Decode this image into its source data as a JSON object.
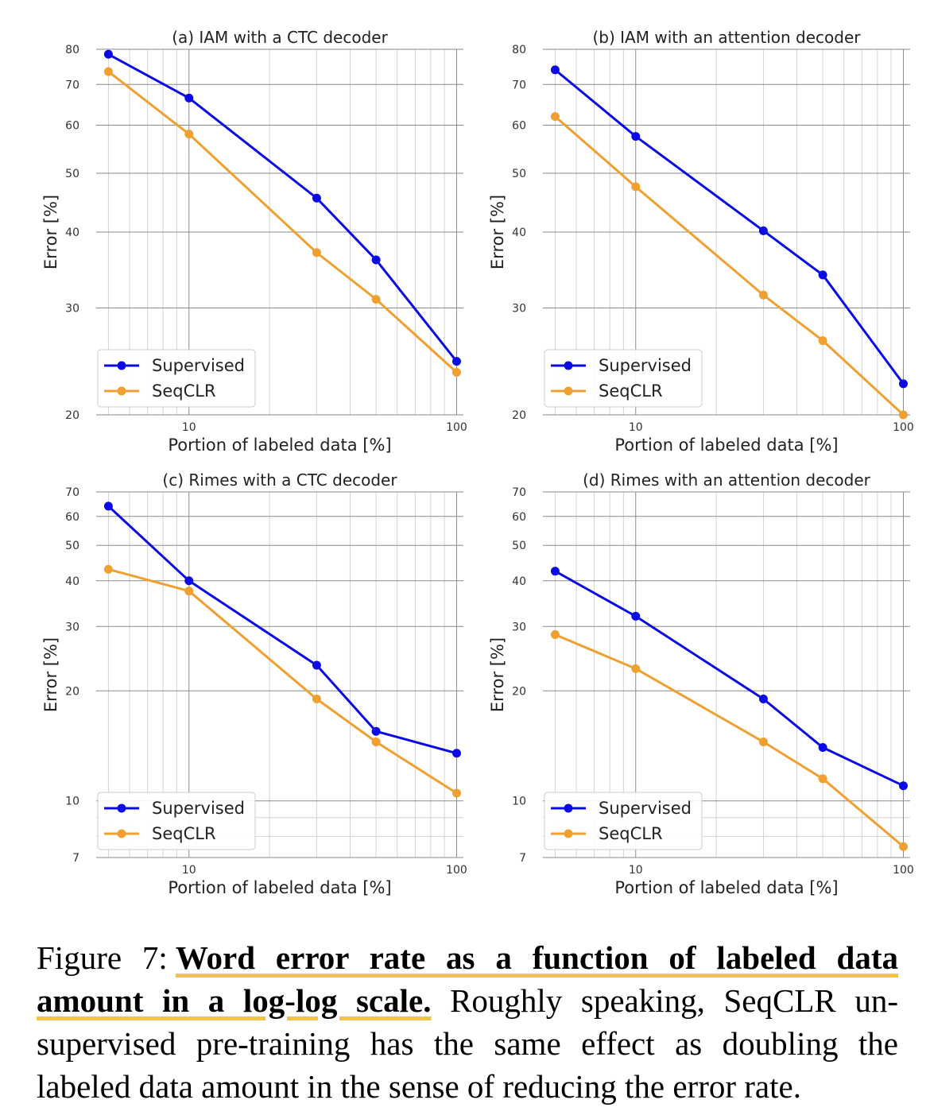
{
  "colors": {
    "supervised": "#0a0ae6",
    "seqclr": "#f0a030",
    "grid_major": "#8a8a8a",
    "grid_minor": "#d2d2d2"
  },
  "chart_data": [
    {
      "type": "line",
      "title": "(a) IAM with a CTC decoder",
      "xlabel": "Portion of labeled data [%]",
      "ylabel": "Error [%]",
      "xscale": "log",
      "yscale": "log",
      "xlim": [
        4.5,
        106
      ],
      "ylim": [
        20,
        80
      ],
      "xticks": [
        10,
        100
      ],
      "xtick_labels": [
        "10",
        "100"
      ],
      "yticks": [
        20,
        30,
        40,
        50,
        60,
        70,
        80
      ],
      "ytick_labels": [
        "20",
        "30",
        "40",
        "50",
        "60",
        "70",
        "80"
      ],
      "legend_position": "lower-left",
      "x": [
        5,
        10,
        30,
        50,
        100
      ],
      "series": [
        {
          "name": "Supervised",
          "values": [
            78.5,
            66.5,
            45.5,
            36.0,
            24.5
          ]
        },
        {
          "name": "SeqCLR",
          "values": [
            73.5,
            58.0,
            37.0,
            31.0,
            23.5
          ]
        }
      ]
    },
    {
      "type": "line",
      "title": "(b) IAM with an attention decoder",
      "xlabel": "Portion of labeled data [%]",
      "ylabel": "Error [%]",
      "xscale": "log",
      "yscale": "log",
      "xlim": [
        4.5,
        106
      ],
      "ylim": [
        20,
        80
      ],
      "xticks": [
        10,
        100
      ],
      "xtick_labels": [
        "10",
        "100"
      ],
      "yticks": [
        20,
        30,
        40,
        50,
        60,
        70,
        80
      ],
      "ytick_labels": [
        "20",
        "30",
        "40",
        "50",
        "60",
        "70",
        "80"
      ],
      "legend_position": "lower-left",
      "x": [
        5,
        10,
        30,
        50,
        100
      ],
      "series": [
        {
          "name": "Supervised",
          "values": [
            74.0,
            57.5,
            40.2,
            34.0,
            22.5
          ]
        },
        {
          "name": "SeqCLR",
          "values": [
            62.0,
            47.5,
            31.5,
            26.5,
            20.0
          ]
        }
      ]
    },
    {
      "type": "line",
      "title": "(c) Rimes with a CTC decoder",
      "xlabel": "Portion of labeled data [%]",
      "ylabel": "Error [%]",
      "xscale": "log",
      "yscale": "log",
      "xlim": [
        4.5,
        106
      ],
      "ylim": [
        7,
        70
      ],
      "xticks": [
        10,
        100
      ],
      "xtick_labels": [
        "10",
        "100"
      ],
      "yticks": [
        7,
        10,
        20,
        30,
        40,
        50,
        60,
        70
      ],
      "ytick_labels": [
        "7",
        "10",
        "20",
        "30",
        "40",
        "50",
        "60",
        "70"
      ],
      "legend_position": "lower-left",
      "x": [
        5,
        10,
        30,
        50,
        100
      ],
      "series": [
        {
          "name": "Supervised",
          "values": [
            64.0,
            40.0,
            23.5,
            15.5,
            13.5
          ]
        },
        {
          "name": "SeqCLR",
          "values": [
            43.0,
            37.5,
            19.0,
            14.5,
            10.5
          ]
        }
      ]
    },
    {
      "type": "line",
      "title": "(d) Rimes with an attention decoder",
      "xlabel": "Portion of labeled data [%]",
      "ylabel": "Error [%]",
      "xscale": "log",
      "yscale": "log",
      "xlim": [
        4.5,
        106
      ],
      "ylim": [
        7,
        70
      ],
      "xticks": [
        10,
        100
      ],
      "xtick_labels": [
        "10",
        "100"
      ],
      "yticks": [
        7,
        10,
        20,
        30,
        40,
        50,
        60,
        70
      ],
      "ytick_labels": [
        "7",
        "10",
        "20",
        "30",
        "40",
        "50",
        "60",
        "70"
      ],
      "legend_position": "lower-left",
      "x": [
        5,
        10,
        30,
        50,
        100
      ],
      "series": [
        {
          "name": "Supervised",
          "values": [
            42.5,
            32.0,
            19.0,
            14.0,
            11.0
          ]
        },
        {
          "name": "SeqCLR",
          "values": [
            28.5,
            23.0,
            14.5,
            11.5,
            7.5
          ]
        }
      ]
    }
  ],
  "caption": {
    "label": "Figure 7:",
    "bold": "Word error rate as a function of labeled data amount in a log-log scale.",
    "bold_line1": "Word error rate as a function of labeled data",
    "bold_line2": "amount in a log-log scale.",
    "rest_line2": "Roughly speaking, SeqCLR un-",
    "line3": "supervised pre-training has the same effect as doubling the",
    "line4": "labeled data amount in the sense of reducing the error rate."
  }
}
